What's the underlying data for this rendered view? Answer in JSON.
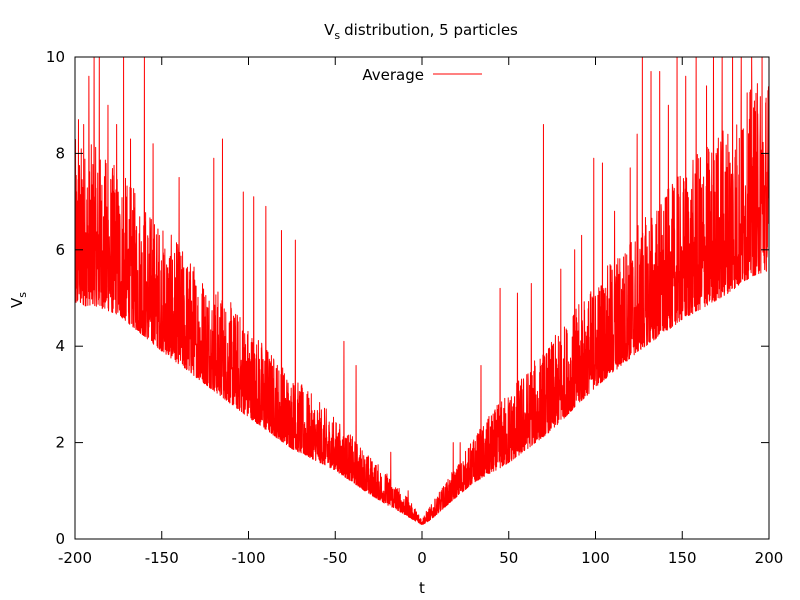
{
  "chart_data": {
    "type": "line",
    "title": "distribution, 5 particles",
    "title_symbol": "V",
    "title_symbol_sub": "s",
    "xlabel": "t",
    "ylabel": "V",
    "ylabel_sub": "s",
    "xlim": [
      -200,
      200
    ],
    "ylim": [
      0,
      10
    ],
    "xticks": [
      -200,
      -150,
      -100,
      -50,
      0,
      50,
      100,
      150,
      200
    ],
    "yticks": [
      0,
      2,
      4,
      6,
      8,
      10
    ],
    "xtick_labels": [
      "-200",
      "-150",
      "-100",
      "-50",
      "0",
      "50",
      "100",
      "150",
      "200"
    ],
    "ytick_labels": [
      "0",
      "2",
      "4",
      "6",
      "8",
      "10"
    ],
    "grid": false,
    "legend_position": "top-center",
    "series": [
      {
        "name": "Average",
        "color": "#ff0000",
        "envelope": {
          "x": [
            -200,
            -190,
            -175,
            -150,
            -125,
            -100,
            -75,
            -50,
            -30,
            -15,
            -5,
            0,
            5,
            15,
            30,
            50,
            75,
            100,
            125,
            150,
            175,
            190,
            200
          ],
          "y": [
            6.0,
            6.0,
            5.7,
            4.8,
            4.0,
            3.2,
            2.4,
            1.8,
            1.2,
            0.8,
            0.5,
            0.35,
            0.5,
            0.9,
            1.5,
            2.1,
            2.9,
            3.9,
            4.8,
            5.6,
            6.3,
            6.8,
            7.0
          ]
        },
        "noise_amplitude": {
          "x": [
            -200,
            -150,
            -100,
            -50,
            -20,
            0,
            20,
            50,
            100,
            150,
            200
          ],
          "y": [
            1.6,
            1.2,
            0.9,
            0.5,
            0.3,
            0.08,
            0.3,
            0.7,
            1.0,
            1.4,
            1.9
          ]
        },
        "spikes": [
          {
            "x": -198,
            "y": 8.7
          },
          {
            "x": -195,
            "y": 8.6
          },
          {
            "x": -192,
            "y": 9.6
          },
          {
            "x": -189,
            "y": 10.0
          },
          {
            "x": -186,
            "y": 10.0
          },
          {
            "x": -181,
            "y": 9.0
          },
          {
            "x": -176,
            "y": 8.6
          },
          {
            "x": -172,
            "y": 10.0
          },
          {
            "x": -168,
            "y": 8.3
          },
          {
            "x": -160,
            "y": 10.0
          },
          {
            "x": -155,
            "y": 8.2
          },
          {
            "x": -140,
            "y": 7.5
          },
          {
            "x": -120,
            "y": 7.9
          },
          {
            "x": -115,
            "y": 8.3
          },
          {
            "x": -103,
            "y": 7.2
          },
          {
            "x": -97,
            "y": 7.1
          },
          {
            "x": -90,
            "y": 6.9
          },
          {
            "x": -81,
            "y": 6.4
          },
          {
            "x": -73,
            "y": 6.2
          },
          {
            "x": -45,
            "y": 4.1
          },
          {
            "x": -38,
            "y": 3.6
          },
          {
            "x": -18,
            "y": 1.8
          },
          {
            "x": -8,
            "y": 1.0
          },
          {
            "x": 18,
            "y": 2.0
          },
          {
            "x": 22,
            "y": 2.0
          },
          {
            "x": 34,
            "y": 3.6
          },
          {
            "x": 45,
            "y": 5.2
          },
          {
            "x": 55,
            "y": 5.1
          },
          {
            "x": 63,
            "y": 5.3
          },
          {
            "x": 70,
            "y": 8.6
          },
          {
            "x": 80,
            "y": 5.6
          },
          {
            "x": 88,
            "y": 6.0
          },
          {
            "x": 92,
            "y": 6.3
          },
          {
            "x": 99,
            "y": 7.9
          },
          {
            "x": 104,
            "y": 7.8
          },
          {
            "x": 111,
            "y": 6.8
          },
          {
            "x": 120,
            "y": 7.7
          },
          {
            "x": 124,
            "y": 8.4
          },
          {
            "x": 127,
            "y": 10.0
          },
          {
            "x": 132,
            "y": 9.7
          },
          {
            "x": 137,
            "y": 9.7
          },
          {
            "x": 142,
            "y": 9.0
          },
          {
            "x": 147,
            "y": 10.0
          },
          {
            "x": 152,
            "y": 9.6
          },
          {
            "x": 158,
            "y": 10.0
          },
          {
            "x": 164,
            "y": 9.4
          },
          {
            "x": 168,
            "y": 10.0
          },
          {
            "x": 173,
            "y": 10.0
          },
          {
            "x": 179,
            "y": 10.0
          },
          {
            "x": 184,
            "y": 10.0
          },
          {
            "x": 190,
            "y": 10.0
          },
          {
            "x": 196,
            "y": 10.0
          }
        ]
      }
    ]
  }
}
